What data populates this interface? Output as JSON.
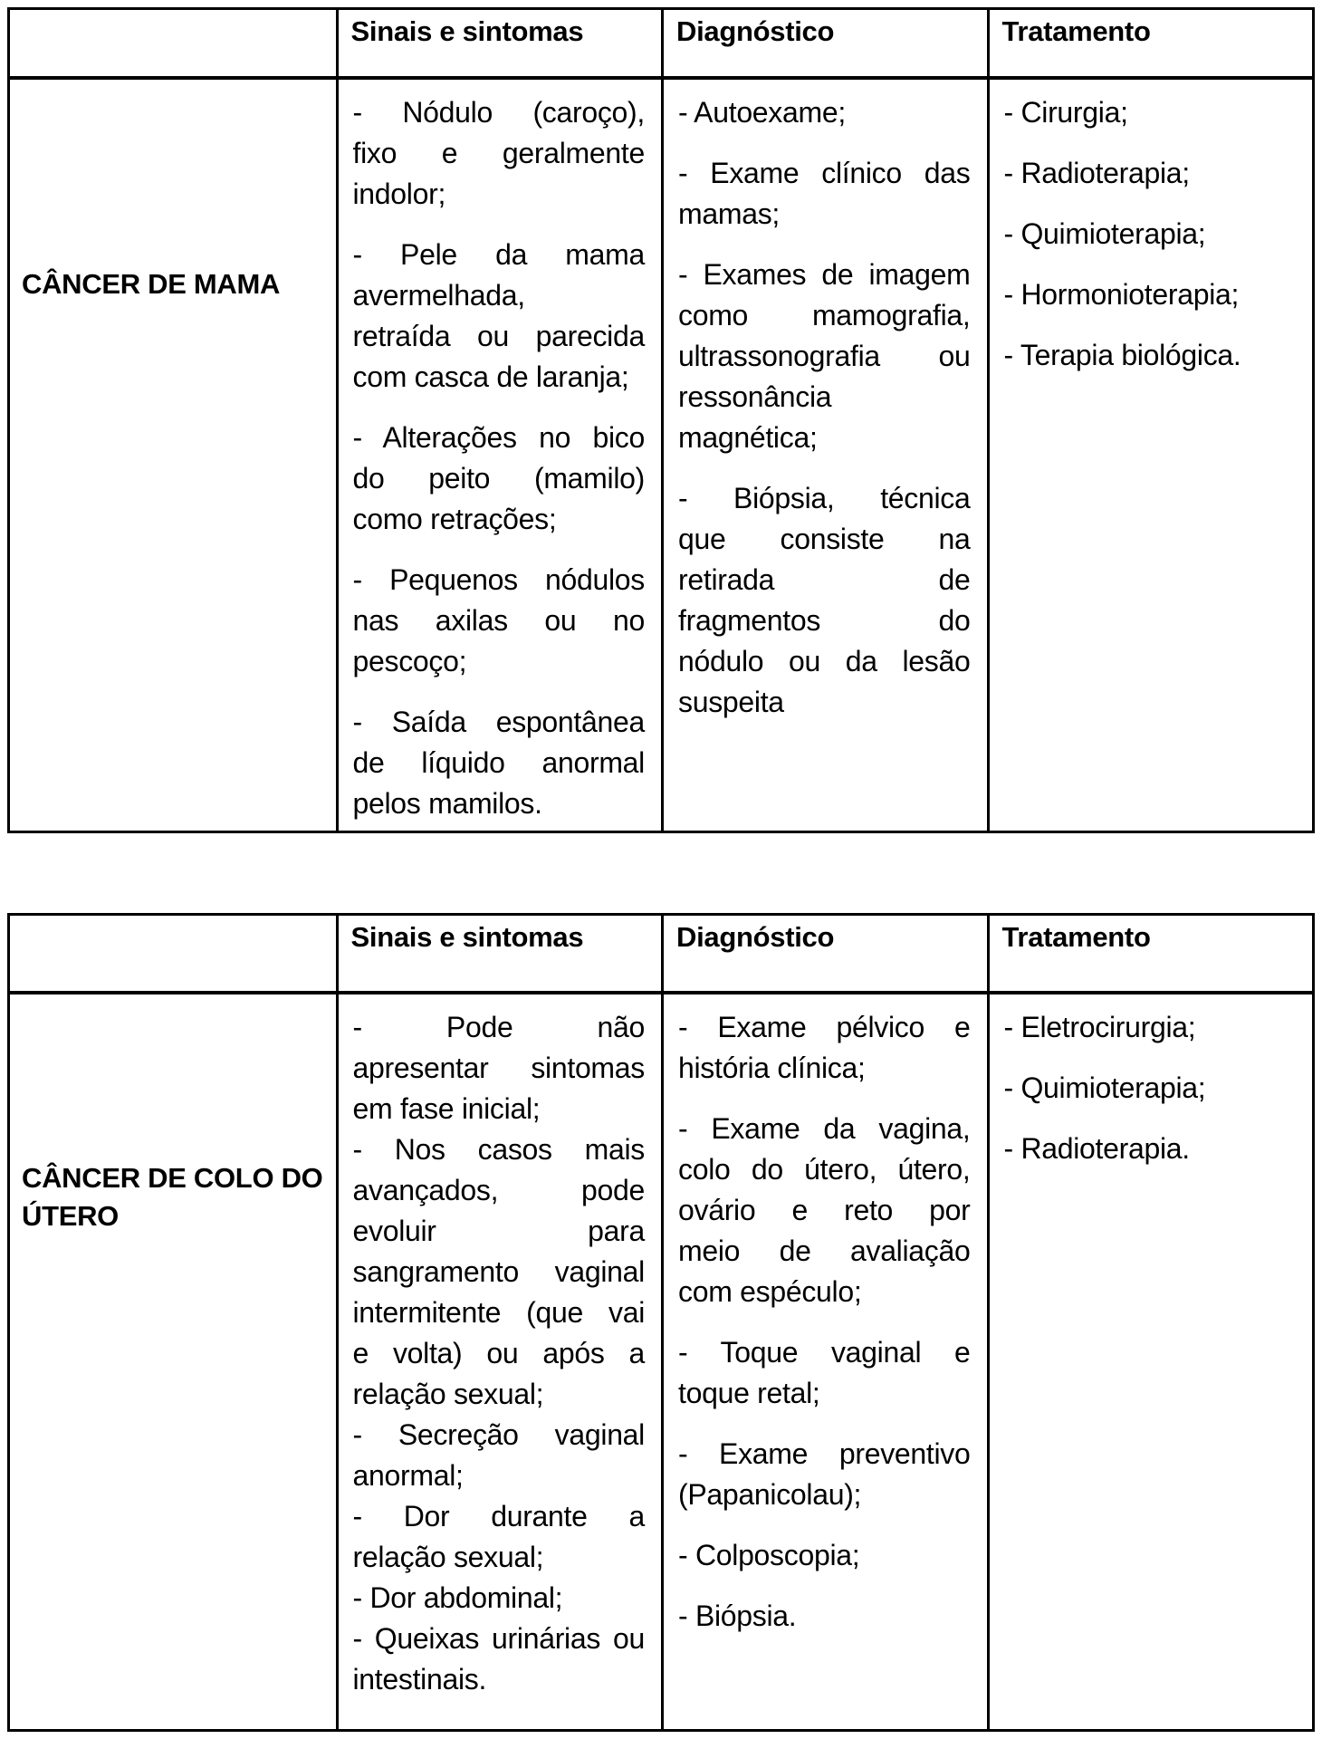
{
  "document": {
    "background_color": "#ffffff",
    "border_color": "#000000",
    "text_color": "#000000"
  },
  "tables": [
    {
      "id": "cancer-de-mama",
      "header": {
        "corner": "",
        "col_sinais": "Sinais e sintomas",
        "col_diagnostico": "Diagnóstico",
        "col_tratamento": "Tratamento"
      },
      "label_lines": [
        "CÂNCER DE MAMA"
      ],
      "sinais": [
        [
          "- Nódulo (caroço),",
          "fixo e geralmente",
          "indolor;"
        ],
        [
          "- Pele da mama",
          "avermelhada,",
          "retraída ou parecida",
          "com casca de laranja;"
        ],
        [
          "- Alterações no bico",
          "do peito (mamilo)",
          "como retrações;"
        ],
        [
          "- Pequenos nódulos",
          "nas axilas ou no",
          "pescoço;"
        ],
        [
          "- Saída espontânea",
          "de líquido anormal",
          "pelos mamilos."
        ]
      ],
      "diagnostico": [
        [
          "- Autoexame;"
        ],
        [
          "- Exame clínico das",
          "mamas;"
        ],
        [
          "- Exames de imagem",
          "como mamografia,",
          "ultrassonografia ou",
          "ressonância",
          "magnética;"
        ],
        [
          "- Biópsia, técnica",
          "que consiste na",
          "retirada de",
          "fragmentos do",
          "nódulo ou da lesão",
          "suspeita"
        ]
      ],
      "tratamento": [
        [
          "- Cirurgia;"
        ],
        [
          "- Radioterapia;"
        ],
        [
          "- Quimioterapia;"
        ],
        [
          "- Hormonioterapia;"
        ],
        [
          "- Terapia biológica."
        ]
      ]
    },
    {
      "id": "cancer-de-colo-do-utero",
      "header": {
        "corner": "",
        "col_sinais": "Sinais e sintomas",
        "col_diagnostico": "Diagnóstico",
        "col_tratamento": "Tratamento"
      },
      "label_lines": [
        "CÂNCER DE COLO DO",
        "ÚTERO"
      ],
      "sinais": [
        [
          "- Pode não",
          "apresentar sintomas",
          "em fase inicial;"
        ],
        [
          "- Nos casos mais",
          "avançados, pode",
          "evoluir para",
          "sangramento vaginal",
          "intermitente (que vai",
          "e volta) ou após a",
          "relação sexual;"
        ],
        [
          "- Secreção vaginal",
          "anormal;"
        ],
        [
          "- Dor durante a",
          "relação sexual;"
        ],
        [
          "- Dor abdominal;"
        ],
        [
          "- Queixas urinárias ou",
          "intestinais."
        ]
      ],
      "diagnostico": [
        [
          "- Exame pélvico e",
          "história clínica;"
        ],
        [
          "- Exame da vagina,",
          "colo do útero, útero,",
          "ovário e reto por",
          "meio de avaliação",
          "com espéculo;"
        ],
        [
          "- Toque vaginal e",
          "toque retal;"
        ],
        [
          "- Exame preventivo",
          "(Papanicolau);"
        ],
        [
          "- Colposcopia;"
        ],
        [
          "- Biópsia."
        ]
      ],
      "tratamento": [
        [
          "- Eletrocirurgia;"
        ],
        [
          "- Quimioterapia;"
        ],
        [
          "- Radioterapia."
        ]
      ]
    }
  ]
}
